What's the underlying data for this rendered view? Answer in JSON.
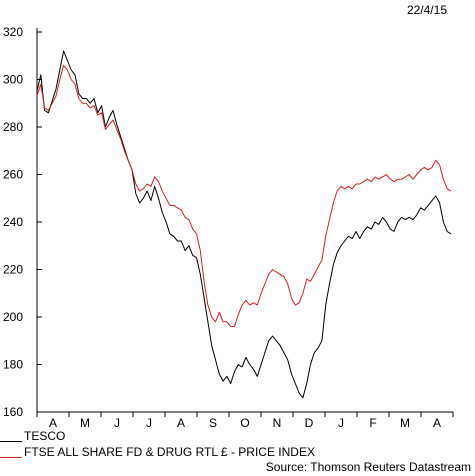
{
  "date_label": "22/4/15",
  "source": "Source: Thomson Reuters Datastream",
  "chart_data": {
    "type": "line",
    "ylim": [
      160,
      320
    ],
    "yticks": [
      160,
      180,
      200,
      220,
      240,
      260,
      280,
      300,
      320
    ],
    "month_labels": [
      "A",
      "M",
      "J",
      "J",
      "A",
      "S",
      "O",
      "N",
      "D",
      "J",
      "F",
      "M",
      "A"
    ],
    "grid": false,
    "legend_position": "bottom-left",
    "series": [
      {
        "name": "TESCO",
        "color": "#000000",
        "values": [
          295,
          302,
          287,
          286,
          291,
          296,
          304,
          312,
          308,
          304,
          302,
          294,
          292,
          292,
          290,
          292,
          286,
          289,
          280,
          284,
          287,
          281,
          276,
          271,
          266,
          262,
          252,
          248,
          250,
          253,
          249,
          255,
          250,
          244,
          240,
          235,
          234,
          232,
          232,
          228,
          230,
          226,
          225,
          218,
          208,
          198,
          188,
          182,
          176,
          173,
          175,
          172,
          177,
          180,
          179,
          183,
          180,
          178,
          175,
          180,
          185,
          190,
          192,
          190,
          188,
          185,
          182,
          176,
          172,
          168,
          166,
          172,
          180,
          185,
          187,
          190,
          205,
          214,
          222,
          227,
          230,
          232,
          234,
          233,
          236,
          233,
          236,
          238,
          237,
          240,
          239,
          242,
          240,
          237,
          236,
          240,
          242,
          241,
          242,
          241,
          243,
          246,
          245,
          247,
          249,
          251,
          248,
          240,
          236,
          235
        ]
      },
      {
        "name": "FTSE ALL SHARE FD & DRUG RTL £ - PRICE INDEX",
        "color": "#d42020",
        "values": [
          293,
          298,
          288,
          287,
          290,
          293,
          300,
          306,
          304,
          300,
          298,
          292,
          290,
          290,
          288,
          289,
          285,
          286,
          279,
          281,
          283,
          279,
          275,
          270,
          266,
          262,
          256,
          253,
          254,
          256,
          255,
          259,
          257,
          253,
          250,
          247,
          247,
          246,
          245,
          242,
          241,
          237,
          235,
          228,
          215,
          205,
          200,
          198,
          202,
          198,
          198,
          196,
          196,
          201,
          205,
          207,
          205,
          206,
          205,
          210,
          214,
          218,
          220,
          219,
          218,
          217,
          214,
          208,
          205,
          206,
          210,
          216,
          215,
          218,
          221,
          224,
          234,
          241,
          248,
          253,
          255,
          254,
          255,
          254,
          256,
          256,
          257,
          258,
          257,
          259,
          258,
          259,
          260,
          258,
          257,
          258,
          258,
          259,
          260,
          258,
          260,
          262,
          263,
          262,
          263,
          266,
          264,
          258,
          254,
          253
        ]
      }
    ]
  }
}
